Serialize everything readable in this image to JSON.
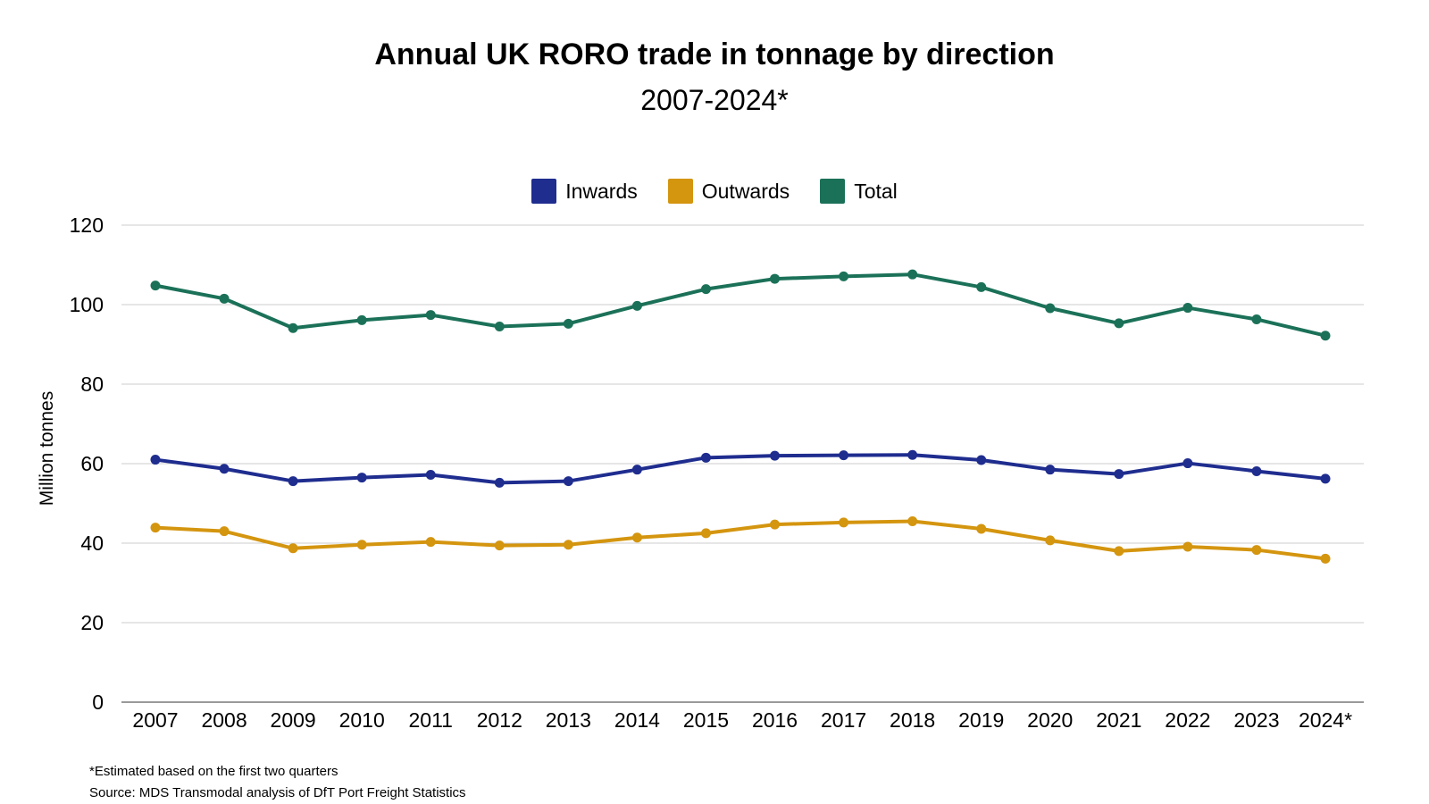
{
  "chart_data": {
    "type": "line",
    "title": "Annual UK RORO trade in tonnage by direction",
    "subtitle": "2007-2024*",
    "ylabel": "Million tonnes",
    "ylim": [
      0,
      120
    ],
    "yticks": [
      0,
      20,
      40,
      60,
      80,
      100,
      120
    ],
    "grid": true,
    "legend_position": "top-center",
    "categories": [
      "2007",
      "2008",
      "2009",
      "2010",
      "2011",
      "2012",
      "2013",
      "2014",
      "2015",
      "2016",
      "2017",
      "2018",
      "2019",
      "2020",
      "2021",
      "2022",
      "2023",
      "2024*"
    ],
    "series": [
      {
        "name": "Inwards",
        "color": "#1f2d8f",
        "values": [
          61.0,
          58.7,
          55.6,
          56.5,
          57.2,
          55.2,
          55.6,
          58.5,
          61.5,
          62.0,
          62.1,
          62.2,
          60.9,
          58.5,
          57.4,
          60.1,
          58.1,
          56.2
        ]
      },
      {
        "name": "Outwards",
        "color": "#d4950f",
        "values": [
          43.9,
          43.0,
          38.7,
          39.6,
          40.3,
          39.4,
          39.6,
          41.4,
          42.5,
          44.7,
          45.2,
          45.5,
          43.6,
          40.7,
          38.0,
          39.1,
          38.3,
          36.1
        ]
      },
      {
        "name": "Total",
        "color": "#1b7158",
        "values": [
          104.8,
          101.5,
          94.1,
          96.1,
          97.4,
          94.5,
          95.2,
          99.7,
          103.9,
          106.5,
          107.1,
          107.6,
          104.4,
          99.1,
          95.3,
          99.2,
          96.3,
          92.2
        ]
      }
    ]
  },
  "footnotes": {
    "note": "*Estimated based on the first two quarters",
    "source": "Source: MDS Transmodal analysis of DfT Port Freight Statistics"
  }
}
